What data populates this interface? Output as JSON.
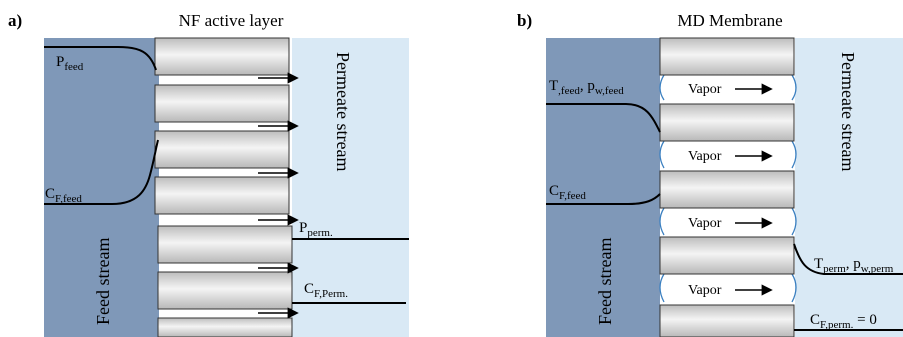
{
  "panel_a": {
    "letter": "a)",
    "title": "NF active layer",
    "feed_stream_label": "Feed stream",
    "permeate_stream_label": "Permeate stream",
    "p_feed": {
      "main": "P",
      "sub": "feed"
    },
    "c_feed": {
      "main": "C",
      "sub": "F,feed"
    },
    "p_perm": {
      "main": "P",
      "sub": "perm."
    },
    "c_perm": {
      "main": "C",
      "sub": "F,Perm."
    }
  },
  "panel_b": {
    "letter": "b)",
    "title": "MD Membrane",
    "feed_stream_label": "Feed stream",
    "permeate_stream_label": "Permeate stream",
    "t_feed": {
      "main": "T",
      "sub1": ",feed",
      "mid": ", p",
      "sub2": "w,feed"
    },
    "c_feed": {
      "main": "C",
      "sub": "F,feed"
    },
    "t_perm": {
      "main": "T",
      "sub1": "perm",
      "mid": ", p",
      "sub2": "w,perm"
    },
    "c_perm": {
      "main": "C",
      "sub": "F,perm.",
      "suffix": " = 0"
    },
    "vapor_labels": [
      "Vapor",
      "Vapor",
      "Vapor",
      "Vapor"
    ]
  },
  "colors": {
    "feed_blue": "#7f98b8",
    "permeate_blue": "#d9e9f5",
    "block_top": "#c8c8c8",
    "block_mid": "#f2f2f2",
    "block_bottom": "#bdbdbd",
    "line": "#000000"
  }
}
